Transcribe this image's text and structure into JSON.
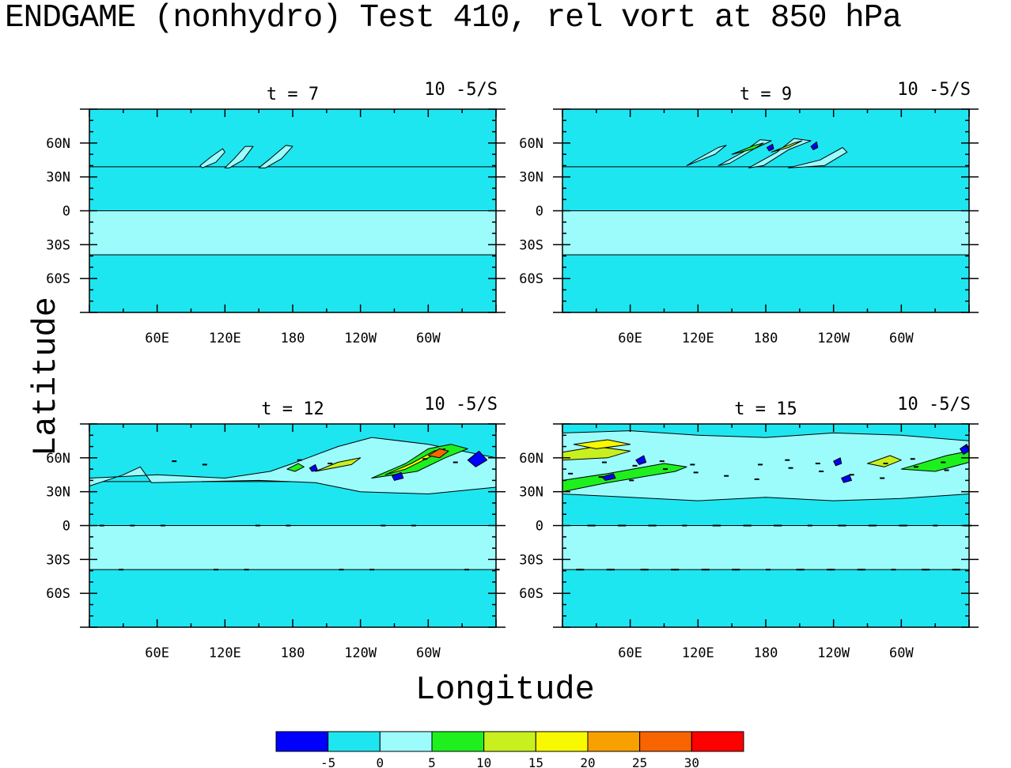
{
  "title": "ENDGAME (nonhydro) Test 410, rel vort at 850 hPa",
  "xlabel": "Longitude",
  "ylabel": "Latitude",
  "colors": {
    "below_-5": "#0000ff",
    "-5_0": "#1ee6f0",
    "0_5": "#9cfcfc",
    "5_10": "#1ef01e",
    "10_15": "#c8f01e",
    "15_20": "#f8f800",
    "20_25": "#f8a000",
    "25_30": "#f86400",
    "above_30": "#ff0000"
  },
  "chart_data": [
    {
      "type": "heatmap",
      "panel": "t = 7",
      "units_label": "10 -5/S",
      "x_ticks": [
        "60E",
        "120E",
        "180",
        "120W",
        "60W"
      ],
      "y_ticks": [
        "60N",
        "30N",
        "0",
        "30S",
        "60S"
      ],
      "ylim": [
        -90,
        90
      ],
      "features": {
        "wave_count": 3,
        "max_color_band": "0_5"
      }
    },
    {
      "type": "heatmap",
      "panel": "t = 9",
      "units_label": "10 -5/S",
      "x_ticks": [
        "60E",
        "120E",
        "180",
        "120W",
        "60W"
      ],
      "y_ticks": [
        "60N",
        "30N",
        "0",
        "30S",
        "60S"
      ],
      "ylim": [
        -90,
        90
      ],
      "features": {
        "wave_count": 4,
        "max_color_band": "10_15"
      }
    },
    {
      "type": "heatmap",
      "panel": "t = 12",
      "units_label": "10 -5/S",
      "x_ticks": [
        "60E",
        "120E",
        "180",
        "120W",
        "60W"
      ],
      "y_ticks": [
        "60N",
        "30N",
        "0",
        "30S",
        "60S"
      ],
      "ylim": [
        -90,
        90
      ],
      "features": {
        "wave_count": 5,
        "max_color_band": "25_30"
      }
    },
    {
      "type": "heatmap",
      "panel": "t = 15",
      "units_label": "10 -5/S",
      "x_ticks": [
        "60E",
        "120E",
        "180",
        "120W",
        "60W"
      ],
      "y_ticks": [
        "60N",
        "30N",
        "0",
        "30S",
        "60S"
      ],
      "ylim": [
        -90,
        90
      ],
      "features": {
        "wave_count": 6,
        "max_color_band": "15_20"
      }
    }
  ],
  "colorbar": {
    "labels": [
      "-5",
      "0",
      "5",
      "10",
      "15",
      "20",
      "25",
      "30"
    ],
    "levels": [
      -5,
      0,
      5,
      10,
      15,
      20,
      25,
      30
    ],
    "colors": [
      "#0000ff",
      "#1ee6f0",
      "#9cfcfc",
      "#1ef01e",
      "#c8f01e",
      "#f8f800",
      "#f8a000",
      "#f86400",
      "#ff0000"
    ]
  }
}
